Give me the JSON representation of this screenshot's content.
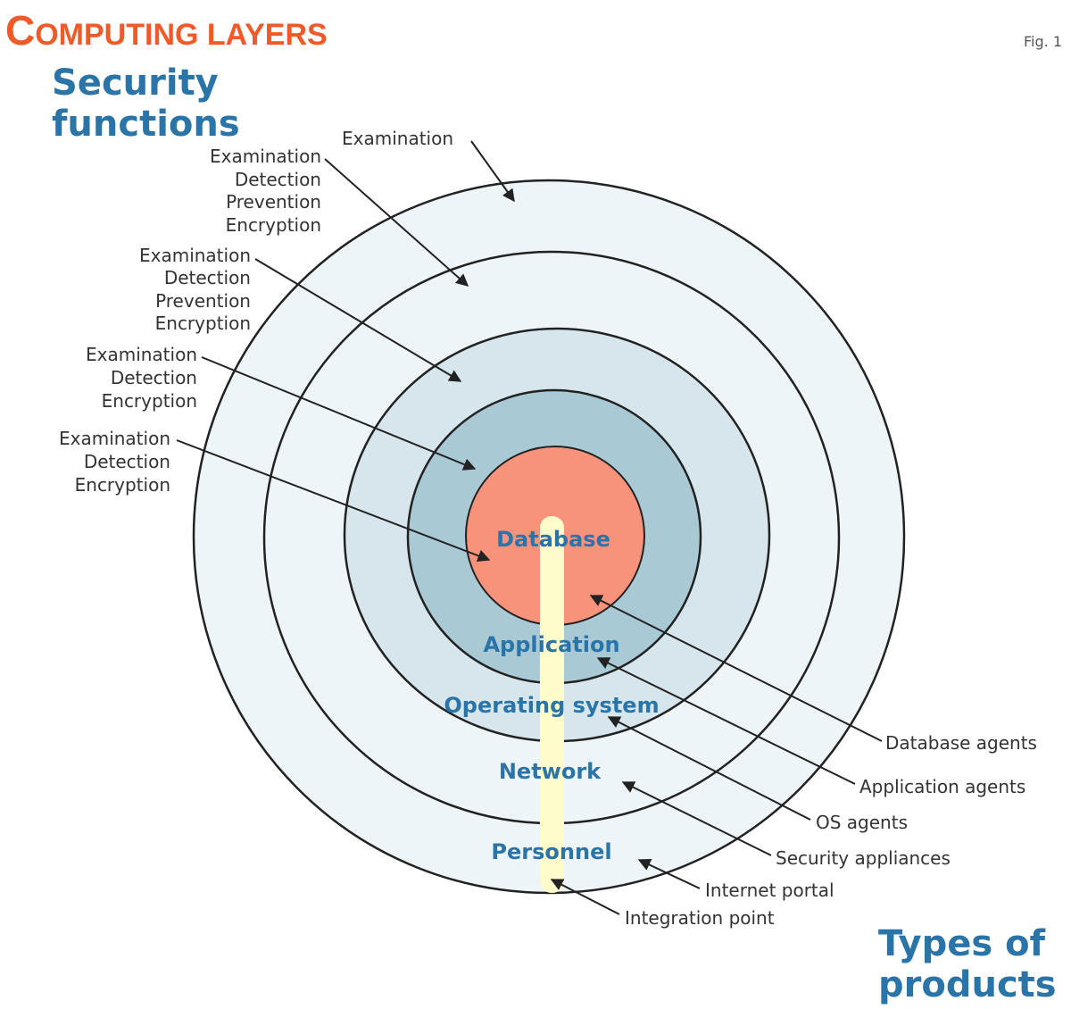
{
  "title": "Computing layers",
  "figure_label": "Fig. 1",
  "left_heading": [
    "Security",
    "functions"
  ],
  "right_heading": [
    "Types of",
    "products"
  ],
  "layers": [
    "Personnel",
    "Network",
    "Operating system",
    "Application",
    "Database"
  ],
  "security_functions": [
    [
      "Examination"
    ],
    [
      "Examination",
      "Detection",
      "Prevention",
      "Encryption"
    ],
    [
      "Examination",
      "Detection",
      "Prevention",
      "Encryption"
    ],
    [
      "Examination",
      "Detection",
      "Encryption"
    ],
    [
      "Examination",
      "Detection",
      "Encryption"
    ]
  ],
  "product_types": [
    "Database agents",
    "Application agents",
    "OS agents",
    "Security appliances",
    "Internet portal",
    "Integration point"
  ],
  "colors": {
    "title": "#f05a28",
    "heading": "#2a74a8",
    "outer_rings": "#eef5f8",
    "os_ring": "#d6e6ec",
    "application_ring": "#a9cad5",
    "database_core": "#f7937a",
    "integration_bar": "#fffccc"
  }
}
